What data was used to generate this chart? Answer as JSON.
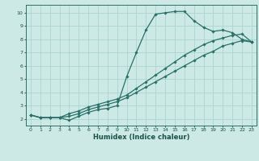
{
  "xlabel": "Humidex (Indice chaleur)",
  "background_color": "#cce9e6",
  "grid_color": "#aad4d0",
  "line_color": "#2a7068",
  "xlim": [
    -0.5,
    23.5
  ],
  "ylim": [
    1.5,
    10.6
  ],
  "xticks": [
    0,
    1,
    2,
    3,
    4,
    5,
    6,
    7,
    8,
    9,
    10,
    11,
    12,
    13,
    14,
    15,
    16,
    17,
    18,
    19,
    20,
    21,
    22,
    23
  ],
  "yticks": [
    2,
    3,
    4,
    5,
    6,
    7,
    8,
    9,
    10
  ],
  "curve1_x": [
    0,
    1,
    2,
    3,
    4,
    5,
    6,
    7,
    8,
    9,
    10,
    11,
    12,
    13,
    14,
    15,
    16,
    17,
    18,
    19,
    20,
    21,
    22,
    23
  ],
  "curve1_y": [
    2.3,
    2.1,
    2.1,
    2.1,
    1.9,
    2.2,
    2.5,
    2.7,
    2.8,
    3.0,
    5.2,
    7.0,
    8.7,
    9.9,
    10.0,
    10.1,
    10.1,
    9.4,
    8.9,
    8.6,
    8.7,
    8.5,
    8.0,
    7.8
  ],
  "curve2_x": [
    0,
    1,
    2,
    3,
    4,
    5,
    6,
    7,
    8,
    9,
    10,
    11,
    12,
    13,
    14,
    15,
    16,
    17,
    18,
    19,
    20,
    21,
    22,
    23
  ],
  "curve2_y": [
    2.3,
    2.1,
    2.1,
    2.1,
    2.2,
    2.4,
    2.7,
    2.9,
    3.1,
    3.3,
    3.6,
    4.0,
    4.4,
    4.8,
    5.2,
    5.6,
    6.0,
    6.4,
    6.8,
    7.1,
    7.5,
    7.7,
    7.9,
    7.8
  ],
  "curve3_x": [
    0,
    1,
    2,
    3,
    4,
    5,
    6,
    7,
    8,
    9,
    10,
    11,
    12,
    13,
    14,
    15,
    16,
    17,
    18,
    19,
    20,
    21,
    22,
    23
  ],
  "curve3_y": [
    2.3,
    2.1,
    2.1,
    2.1,
    2.4,
    2.6,
    2.9,
    3.1,
    3.3,
    3.5,
    3.8,
    4.3,
    4.8,
    5.3,
    5.8,
    6.3,
    6.8,
    7.2,
    7.6,
    7.9,
    8.1,
    8.3,
    8.4,
    7.8
  ]
}
